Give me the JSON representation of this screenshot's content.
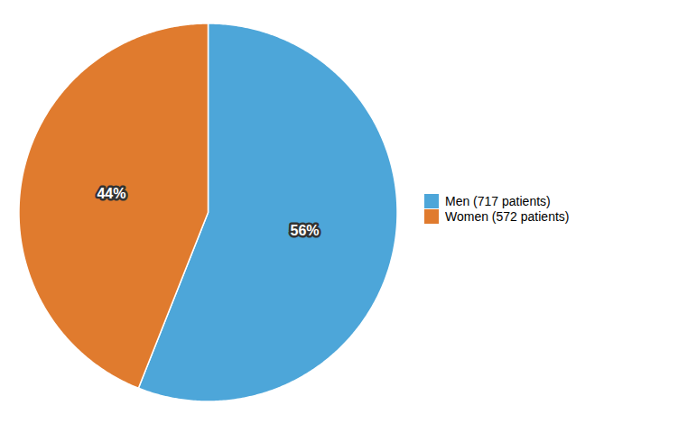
{
  "chart_data": {
    "type": "pie",
    "categories": [
      "Men (717 patients)",
      "Women (572 patients)"
    ],
    "values": [
      56,
      44
    ],
    "value_labels": [
      "56%",
      "44%"
    ],
    "colors": [
      "#4da6d9",
      "#e07b2e"
    ],
    "data_labels": true,
    "legend": "right"
  }
}
